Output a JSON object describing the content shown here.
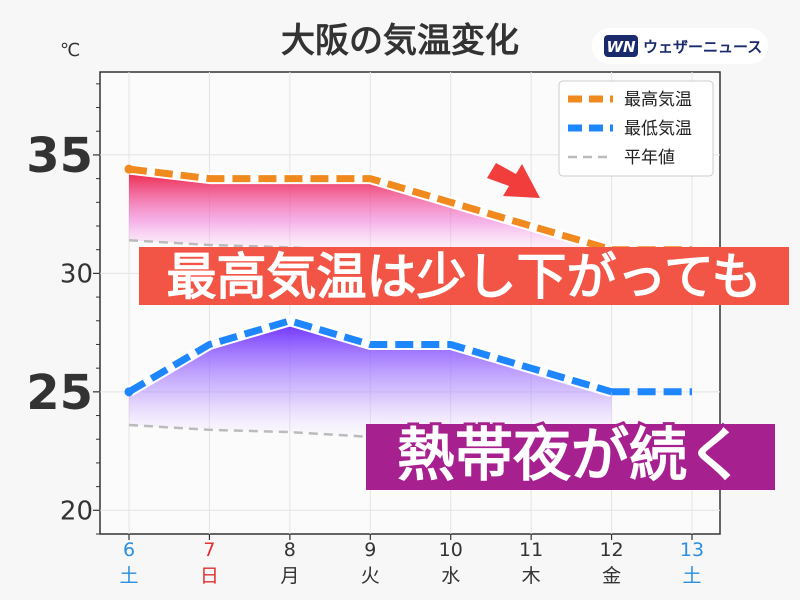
{
  "header": {
    "title": "大阪の気温変化",
    "unit": "℃"
  },
  "logo": {
    "mark": "WN",
    "text": "ウェザーニュース"
  },
  "banners": {
    "top": "最高気温は少し下がっても",
    "bottom": "熱帯夜が続く"
  },
  "colors": {
    "max": "#f08a1f",
    "min": "#1e86ff",
    "avg": "#bbbbbb",
    "highlight_max": "#f23d3d",
    "highlight_min": "#7b3fff",
    "banner_top": "#f25545",
    "banner_bottom": "#a7208f",
    "weekday": "#333333",
    "saturday": "#2a8fe0",
    "sunday": "#e03030"
  },
  "chart_data": {
    "type": "line",
    "ylabel": "℃",
    "ylim": [
      19,
      38.5
    ],
    "yticks": [
      20,
      25,
      30,
      35
    ],
    "highlight_ticks": [
      25,
      35
    ],
    "categories": [
      {
        "day": "6",
        "weekday": "土",
        "kind": "saturday"
      },
      {
        "day": "7",
        "weekday": "日",
        "kind": "sunday"
      },
      {
        "day": "8",
        "weekday": "月",
        "kind": "weekday"
      },
      {
        "day": "9",
        "weekday": "火",
        "kind": "weekday"
      },
      {
        "day": "10",
        "weekday": "水",
        "kind": "weekday"
      },
      {
        "day": "11",
        "weekday": "木",
        "kind": "weekday"
      },
      {
        "day": "12",
        "weekday": "金",
        "kind": "weekday"
      },
      {
        "day": "13",
        "weekday": "土",
        "kind": "saturday"
      }
    ],
    "series": [
      {
        "name": "最高気温",
        "key": "max",
        "values": [
          34.4,
          34,
          34,
          34,
          33,
          32,
          31,
          31
        ]
      },
      {
        "name": "最低気温",
        "key": "min",
        "values": [
          25,
          27,
          28,
          27,
          27,
          26,
          25,
          25
        ]
      },
      {
        "name": "平年値",
        "key": "avg",
        "values": [
          31.4,
          31.2,
          31.1,
          30.9,
          30.7,
          30.5,
          30.3,
          30.1
        ]
      },
      {
        "name": "",
        "key": "avg_min",
        "values": [
          23.6,
          23.4,
          23.3,
          23.1,
          22.9,
          22.8,
          22.6,
          22.5
        ]
      }
    ],
    "legend": {
      "position": "top-right",
      "entries": [
        "最高気温",
        "最低気温",
        "平年値"
      ]
    },
    "grid": true
  }
}
